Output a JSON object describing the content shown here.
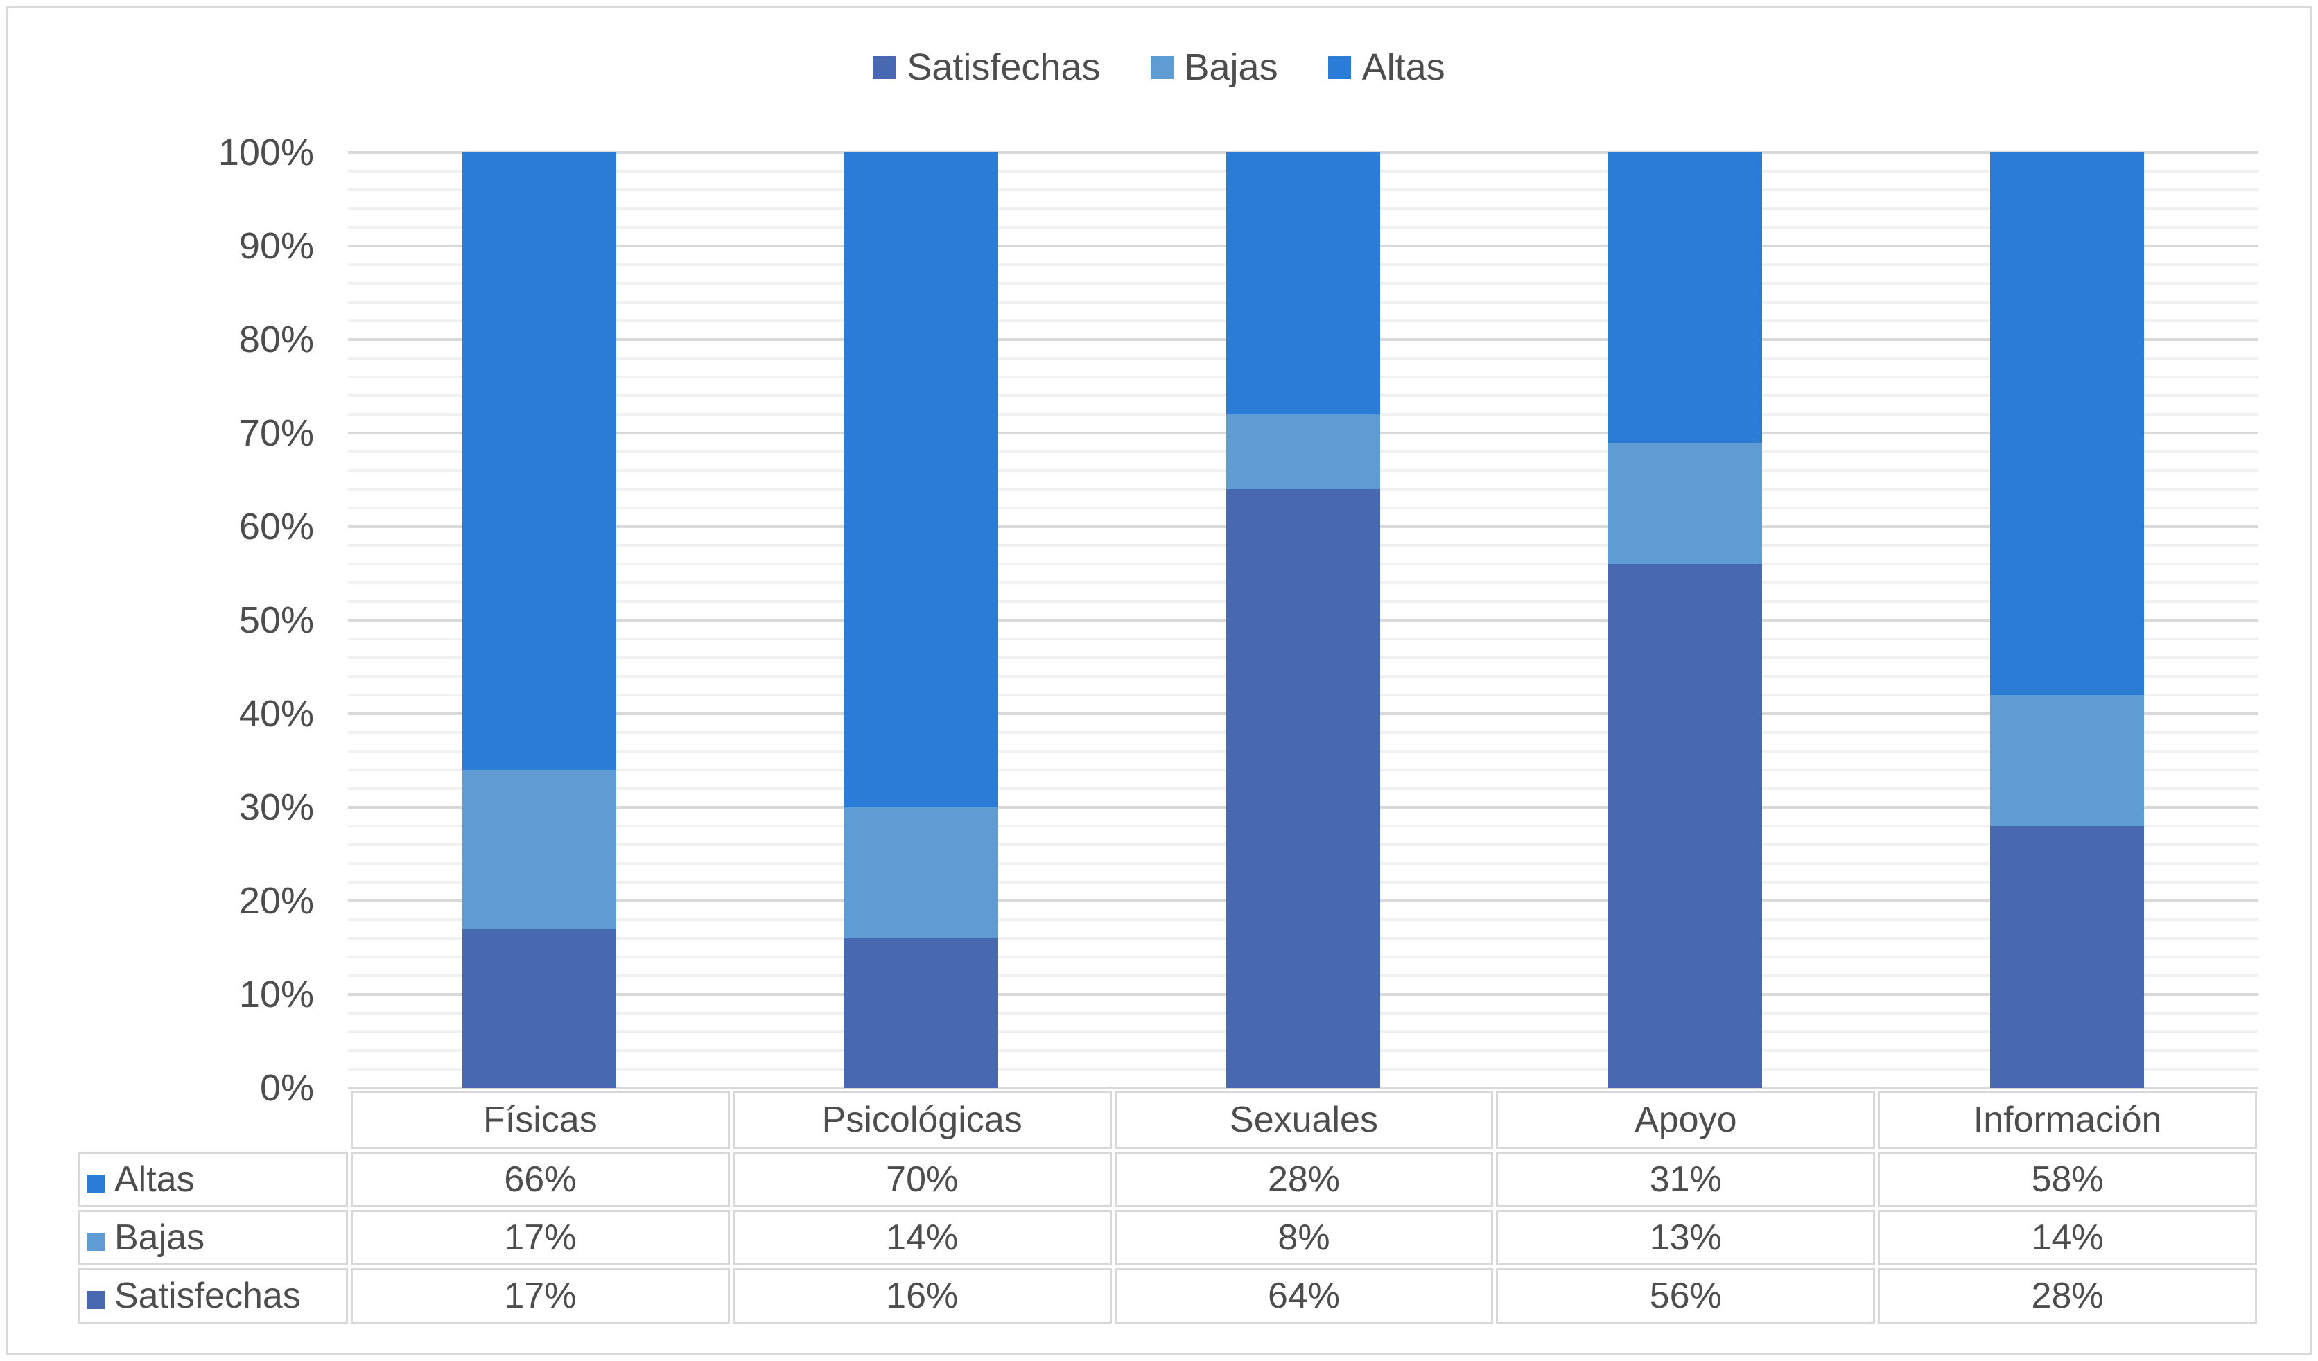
{
  "chart_data": {
    "type": "bar",
    "subtype": "stacked-100-percent-column",
    "title": "",
    "categories": [
      "Físicas",
      "Psicológicas",
      "Sexuales",
      "Apoyo",
      "Información"
    ],
    "series": [
      {
        "name": "Satisfechas",
        "color": "#4868B2",
        "values": [
          17,
          16,
          64,
          56,
          28
        ]
      },
      {
        "name": "Bajas",
        "color": "#5F9CD3",
        "values": [
          17,
          14,
          8,
          13,
          14
        ]
      },
      {
        "name": "Altas",
        "color": "#2B7CD6",
        "values": [
          66,
          70,
          28,
          31,
          58
        ]
      }
    ],
    "stack_order_bottom_to_top": [
      "Satisfechas",
      "Bajas",
      "Altas"
    ],
    "value_suffix": "%",
    "y_axis": {
      "min": 0,
      "max": 100,
      "major_step": 10,
      "minor_step": 2,
      "tick_labels": [
        "0%",
        "10%",
        "20%",
        "30%",
        "40%",
        "50%",
        "60%",
        "70%",
        "80%",
        "90%",
        "100%"
      ]
    },
    "legend": {
      "position": "top",
      "entries": [
        "Satisfechas",
        "Bajas",
        "Altas"
      ]
    },
    "grid": {
      "major_color": "#D9D9D9",
      "minor_color": "#F1F1F1",
      "major_on": true,
      "minor_on": true
    },
    "data_table": {
      "show_legend_keys": true,
      "row_order": [
        "Altas",
        "Bajas",
        "Satisfechas"
      ]
    }
  },
  "colors": {
    "background": "#FFFFFF",
    "frame_border": "#D9D9D9",
    "table_border": "#D8D8D8",
    "text": "#4D4D4D"
  }
}
